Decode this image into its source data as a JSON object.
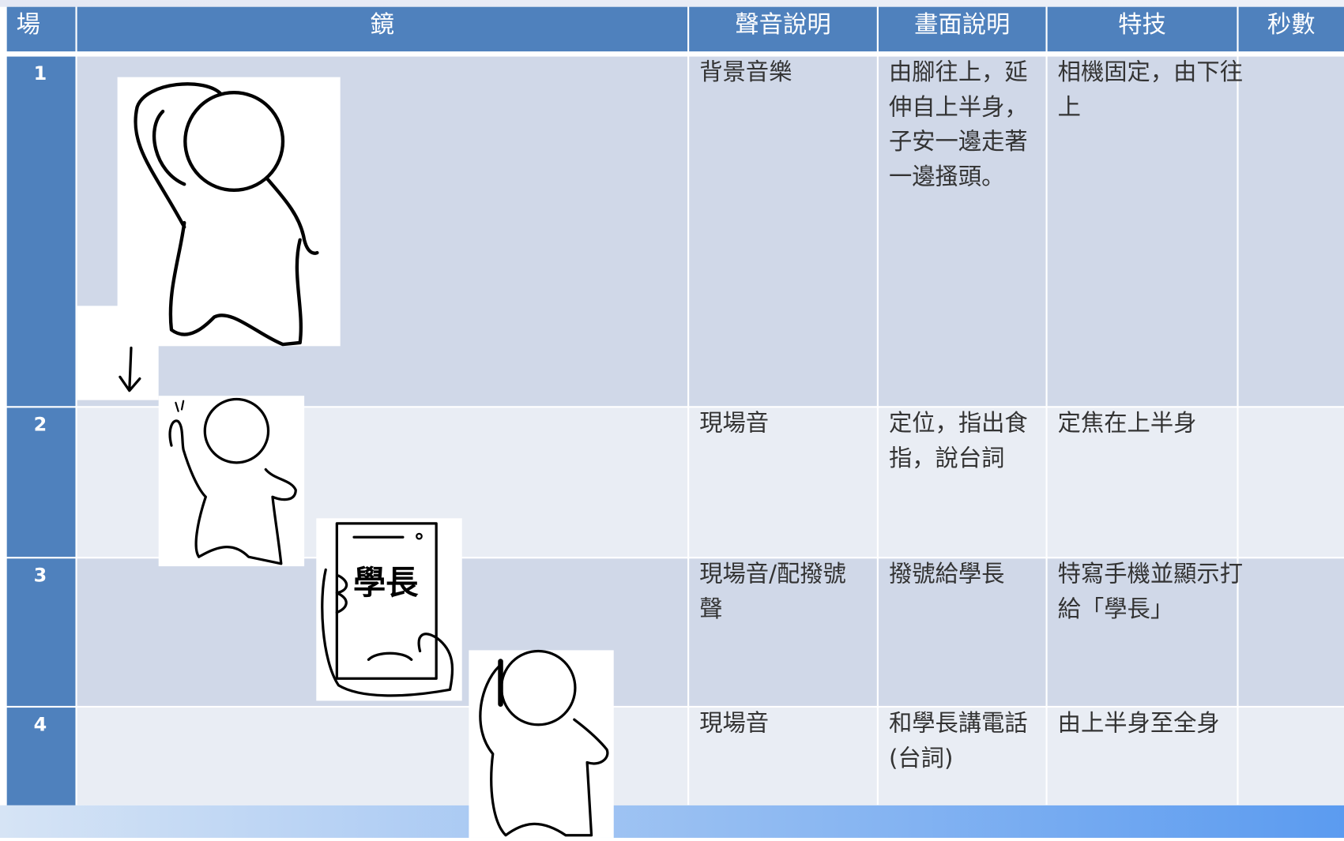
{
  "table": {
    "header": [
      "場",
      "鏡",
      "聲音說明",
      "畫面說明",
      "特技",
      "秒數"
    ],
    "rows": [
      {
        "scene": "1",
        "sound": "背景音樂",
        "visual": "由腳往上，延伸自上半身，子安一邊走著一邊搔頭。",
        "effect": "相機固定，由下往上"
      },
      {
        "scene": "2",
        "sound": "現場音",
        "visual": "定位，指出食指，說台詞",
        "effect": "定焦在上半身"
      },
      {
        "scene": "3",
        "sound": "現場音/配撥號聲",
        "visual": "撥號給學長",
        "effect": "特寫手機並顯示打給「學長」"
      },
      {
        "scene": "4",
        "sound": "現場音",
        "visual": "和學長講電話(台詞)",
        "effect": "由上半身至全身"
      }
    ]
  },
  "sketch": {
    "phone_label": "學長"
  }
}
